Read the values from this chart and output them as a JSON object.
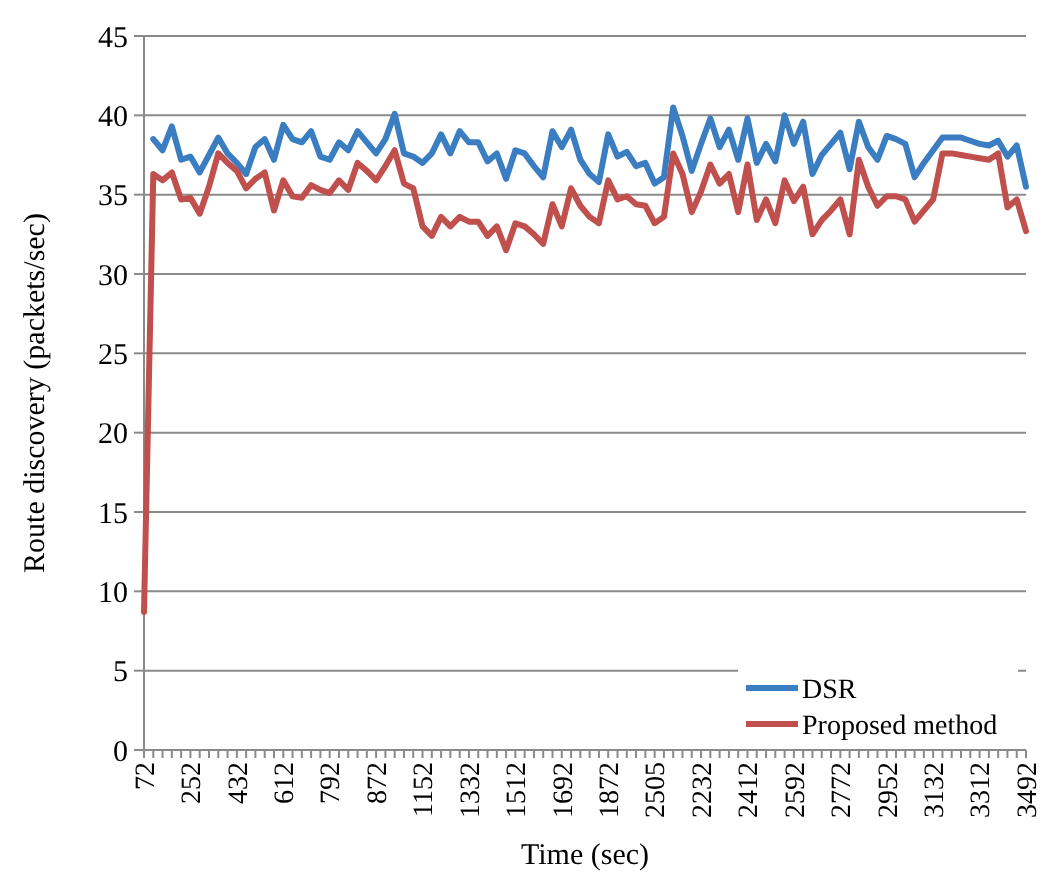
{
  "chart_data": {
    "type": "line",
    "xlabel": "Time (sec)",
    "ylabel": "Route discovery (packets/sec)",
    "categories": [
      "72",
      null,
      null,
      null,
      null,
      "252",
      null,
      null,
      null,
      null,
      "432",
      null,
      null,
      null,
      null,
      "612",
      null,
      null,
      null,
      null,
      "792",
      null,
      null,
      null,
      null,
      "872",
      null,
      null,
      null,
      null,
      "1152",
      null,
      null,
      null,
      null,
      "1332",
      null,
      null,
      null,
      null,
      "1512",
      null,
      null,
      null,
      null,
      "1692",
      null,
      null,
      null,
      null,
      "1872",
      null,
      null,
      null,
      null,
      "2505",
      null,
      null,
      null,
      null,
      "2232",
      null,
      null,
      null,
      null,
      "2412",
      null,
      null,
      null,
      null,
      "2592",
      null,
      null,
      null,
      null,
      "2772",
      null,
      null,
      null,
      null,
      "2952",
      null,
      null,
      null,
      null,
      "3132",
      null,
      null,
      null,
      null,
      "3312",
      null,
      null,
      null,
      null,
      "3492"
    ],
    "series": [
      {
        "name": "DSR",
        "color": "#3a7dc0",
        "values": [
          null,
          38.5,
          37.8,
          39.3,
          37.2,
          37.4,
          36.4,
          37.5,
          38.6,
          37.6,
          37.0,
          36.3,
          38.0,
          38.5,
          37.2,
          39.4,
          38.5,
          38.3,
          39.0,
          37.4,
          37.2,
          38.3,
          37.8,
          39.0,
          38.3,
          37.6,
          38.5,
          40.1,
          37.6,
          37.4,
          37.0,
          37.6,
          38.8,
          37.6,
          39.0,
          38.3,
          38.3,
          37.1,
          37.6,
          36.0,
          37.8,
          37.6,
          36.8,
          36.1,
          39.0,
          38.0,
          39.1,
          37.2,
          36.3,
          35.8,
          38.8,
          37.4,
          37.7,
          36.8,
          37.0,
          35.7,
          36.1,
          40.5,
          38.7,
          36.5,
          38.2,
          39.8,
          38.0,
          39.1,
          37.2,
          39.8,
          37.0,
          38.2,
          37.1,
          40.0,
          38.2,
          39.6,
          36.3,
          37.5,
          38.2,
          38.9,
          36.6,
          39.6,
          38.0,
          37.2,
          38.7,
          38.5,
          38.2,
          36.1,
          37.0,
          37.8,
          38.6,
          38.6,
          38.6,
          38.4,
          38.2,
          38.1,
          38.4,
          37.4,
          38.1,
          35.5
        ]
      },
      {
        "name": "Proposed method",
        "color": "#c0504d",
        "values": [
          8.7,
          36.3,
          35.9,
          36.4,
          34.7,
          34.8,
          33.8,
          35.5,
          37.6,
          37.0,
          36.5,
          35.4,
          36.0,
          36.4,
          34.0,
          35.9,
          34.9,
          34.8,
          35.6,
          35.3,
          35.1,
          35.9,
          35.3,
          37.0,
          36.5,
          35.9,
          36.8,
          37.8,
          35.7,
          35.4,
          33.0,
          32.4,
          33.6,
          33.0,
          33.6,
          33.3,
          33.3,
          32.4,
          33.0,
          31.5,
          33.2,
          33.0,
          32.5,
          31.9,
          34.4,
          33.0,
          35.4,
          34.3,
          33.6,
          33.2,
          35.9,
          34.7,
          34.9,
          34.4,
          34.3,
          33.2,
          33.6,
          37.6,
          36.3,
          33.9,
          35.2,
          36.9,
          35.7,
          36.3,
          33.9,
          36.9,
          33.4,
          34.7,
          33.2,
          35.9,
          34.6,
          35.5,
          32.5,
          33.4,
          34.0,
          34.7,
          32.5,
          37.2,
          35.5,
          34.3,
          34.9,
          34.9,
          34.7,
          33.3,
          34.0,
          34.7,
          37.6,
          37.6,
          37.5,
          37.4,
          37.3,
          37.2,
          37.6,
          34.2,
          34.7,
          32.7
        ]
      }
    ],
    "ylim": [
      0,
      45
    ],
    "yticks": [
      0,
      5,
      10,
      15,
      20,
      25,
      30,
      35,
      40,
      45
    ],
    "grid": "y",
    "legend": "bottom right",
    "marker": "none",
    "line_style": "solid"
  }
}
